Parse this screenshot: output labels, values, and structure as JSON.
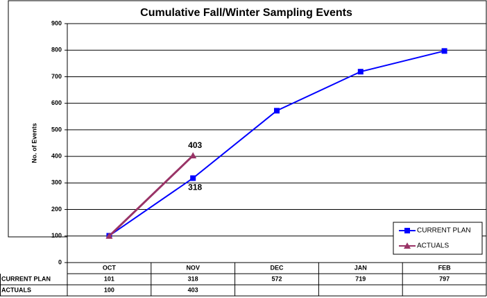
{
  "chart_data": {
    "type": "line",
    "title": "Cumulative Fall/Winter Sampling Events",
    "y_label": "No. of Events",
    "categories": [
      "OCT",
      "NOV",
      "DEC",
      "JAN",
      "FEB"
    ],
    "series": [
      {
        "name": "CURRENT PLAN",
        "color": "#0000ff",
        "marker": "square",
        "values": [
          101,
          318,
          572,
          719,
          797
        ],
        "labeled": [
          1
        ],
        "label_side": "below"
      },
      {
        "name": "ACTUALS",
        "color": "#993366",
        "marker": "triangle",
        "values": [
          100,
          403,
          null,
          null,
          null
        ],
        "labeled": [
          1
        ],
        "label_side": "above"
      }
    ],
    "ylim": [
      0,
      900
    ],
    "yticks": [
      0,
      100,
      200,
      300,
      400,
      500,
      600,
      700,
      800,
      900
    ],
    "grid": true,
    "legend": "lower right",
    "data_table": true
  }
}
